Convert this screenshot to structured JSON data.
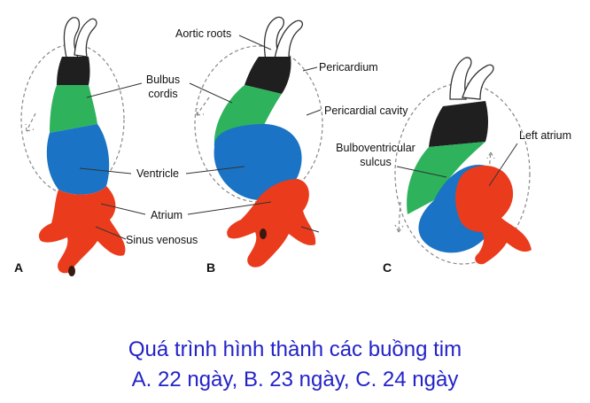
{
  "colors": {
    "outflow": "#1f1f1f",
    "bulbus": "#2eb35c",
    "ventricle": "#1a73c4",
    "atrium": "#ea3c1c",
    "caption": "#2323c8"
  },
  "panels": {
    "a": {
      "letter": "A"
    },
    "b": {
      "letter": "B"
    },
    "c": {
      "letter": "C"
    }
  },
  "labels": {
    "bulbus_cordis_1": "Bulbus",
    "bulbus_cordis_2": "cordis",
    "ventricle": "Ventricle",
    "atrium": "Atrium",
    "sinus_venosus": "Sinus venosus",
    "aortic_roots": "Aortic roots",
    "pericardium": "Pericardium",
    "pericardial_cavity": "Pericardial cavity",
    "bulboventricular_1": "Bulboventricular",
    "bulboventricular_2": "sulcus",
    "left_atrium": "Left atrium"
  },
  "caption": {
    "line1": "Quá trình hình thành các buồng tim",
    "line2": "A. 22 ngày, B. 23 ngày, C. 24 ngày"
  }
}
